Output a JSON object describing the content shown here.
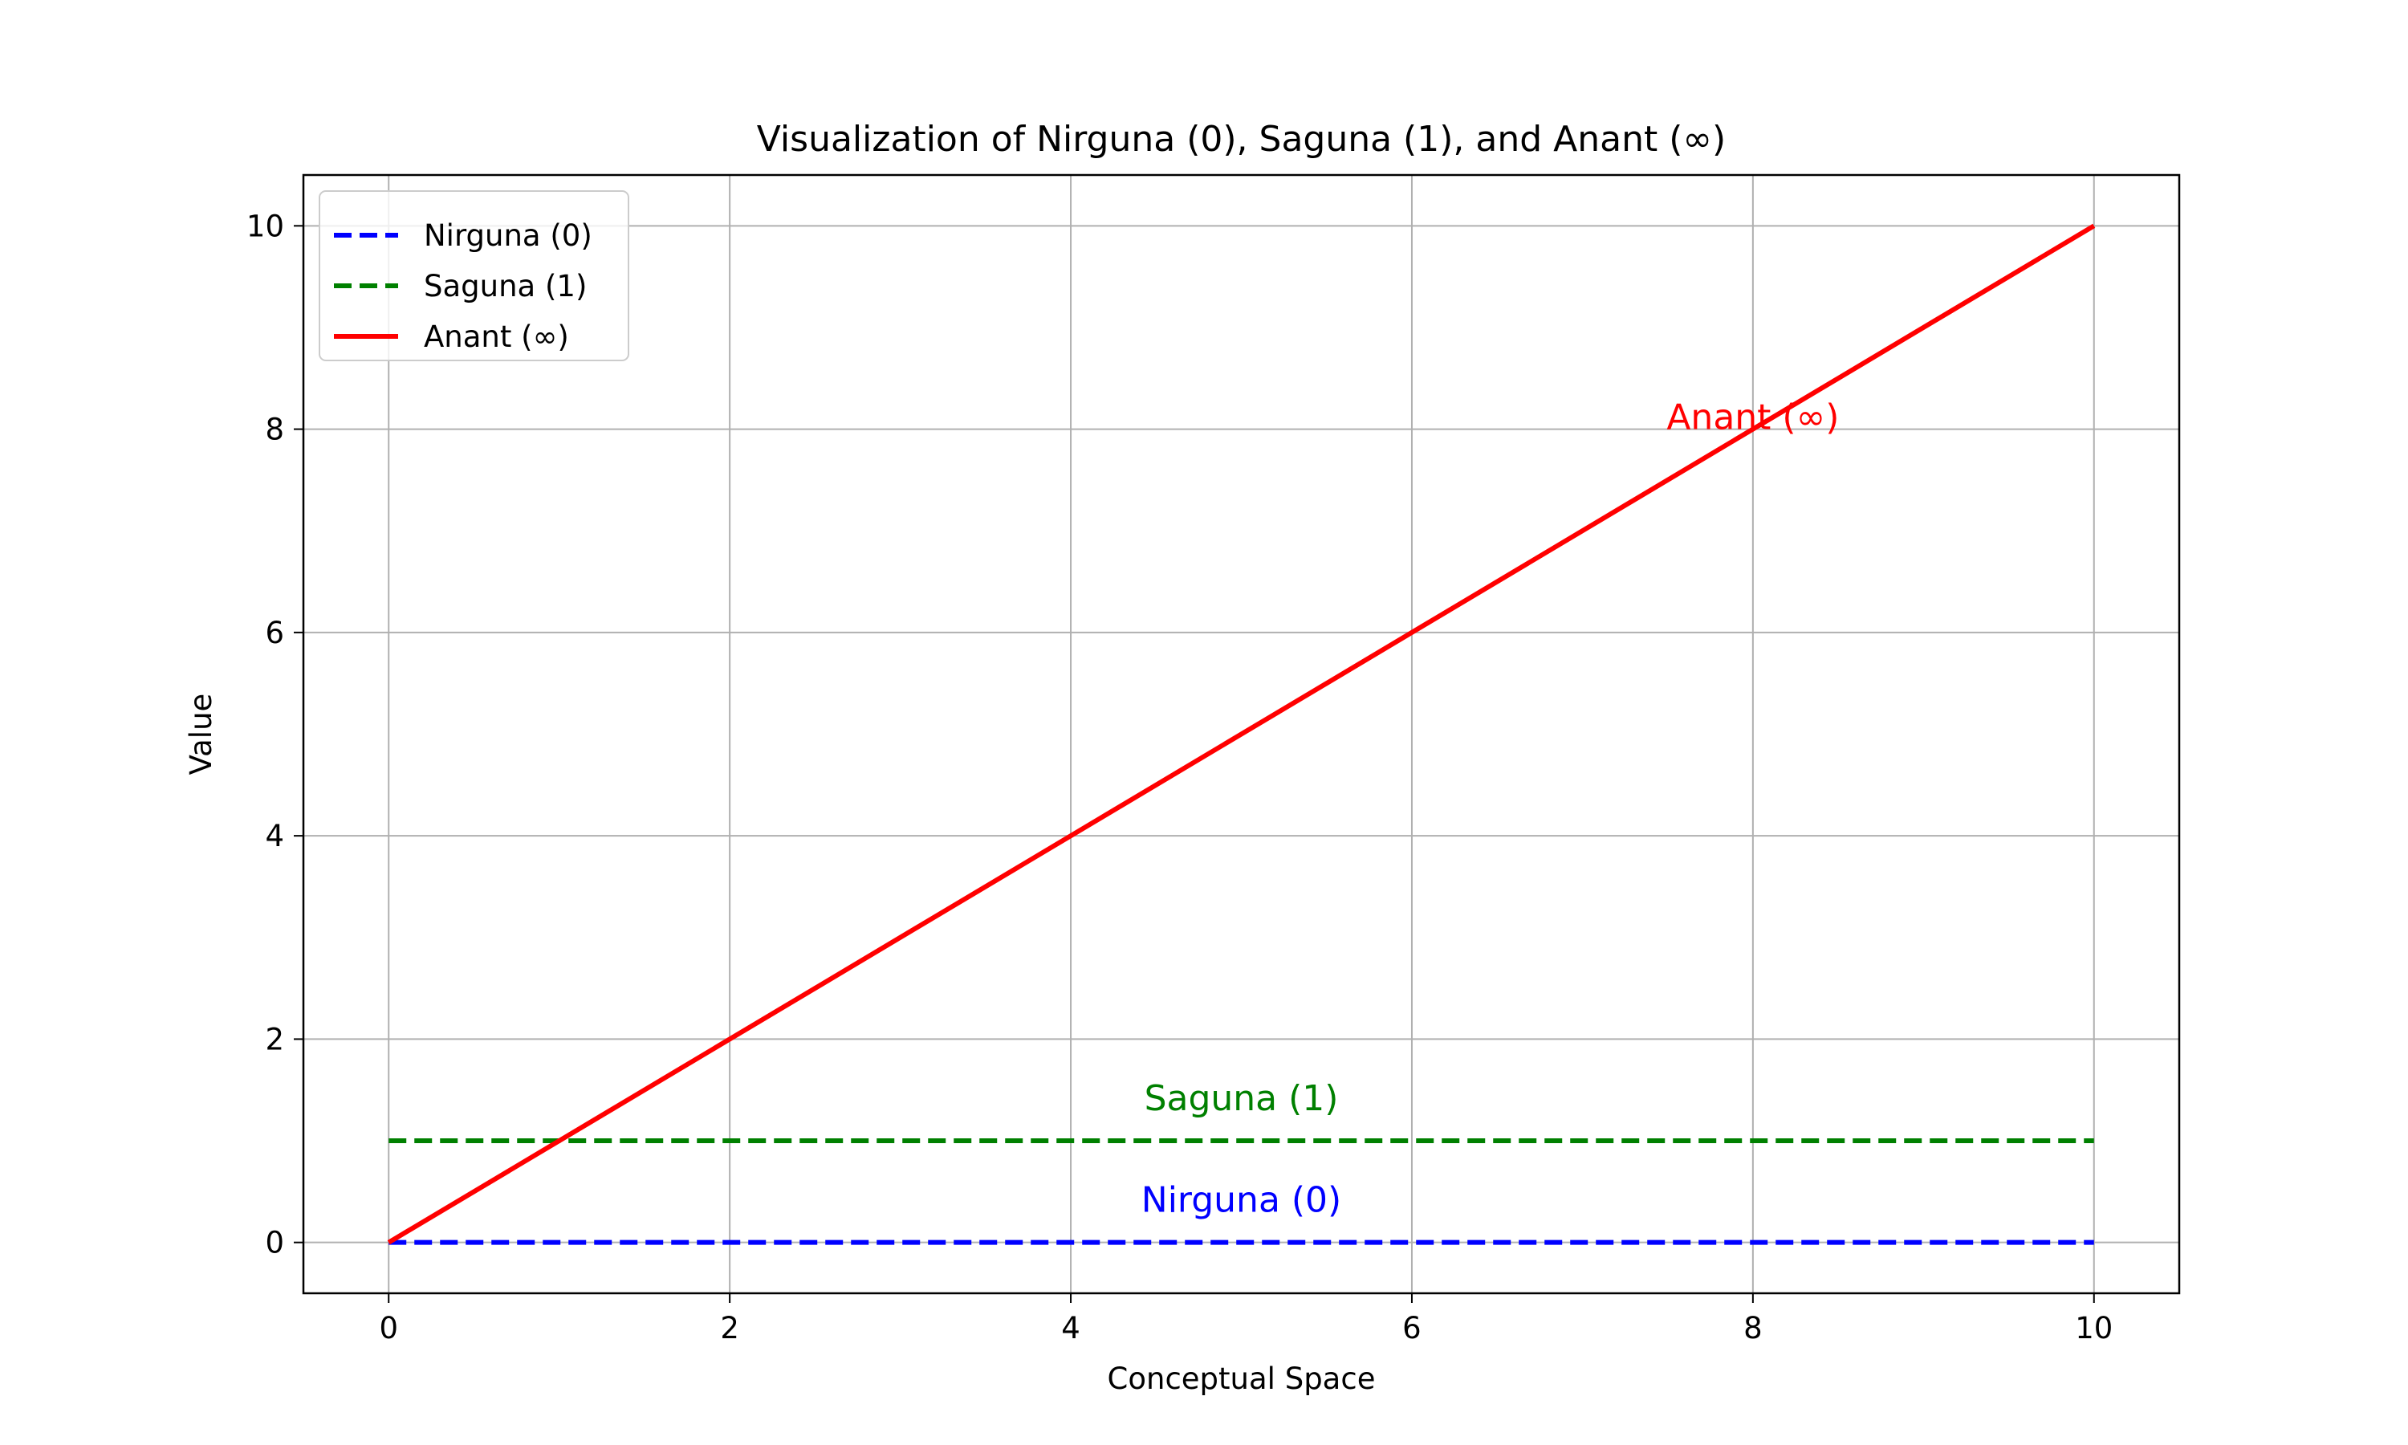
{
  "chart_data": {
    "type": "line",
    "title": "Visualization of Nirguna (0), Saguna (1), and Anant (∞)",
    "xlabel": "Conceptual Space",
    "ylabel": "Value",
    "xlim": [
      -0.5,
      10.5
    ],
    "ylim": [
      -0.5,
      10.5
    ],
    "xticks": [
      0,
      2,
      4,
      6,
      8,
      10
    ],
    "yticks": [
      0,
      2,
      4,
      6,
      8,
      10
    ],
    "xtick_labels": [
      "0",
      "2",
      "4",
      "6",
      "8",
      "10"
    ],
    "ytick_labels": [
      "0",
      "2",
      "4",
      "6",
      "8",
      "10"
    ],
    "grid": true,
    "legend_position": "top-left",
    "series": [
      {
        "name": "Nirguna (0)",
        "color": "#0000ff",
        "style": "dashed",
        "x": [
          0,
          10
        ],
        "y": [
          0,
          0
        ]
      },
      {
        "name": "Saguna (1)",
        "color": "#008000",
        "style": "dashed",
        "x": [
          0,
          10
        ],
        "y": [
          1,
          1
        ]
      },
      {
        "name": "Anant (∞)",
        "color": "#ff0000",
        "style": "solid",
        "x": [
          0,
          10
        ],
        "y": [
          0,
          10
        ]
      }
    ],
    "annotations": [
      {
        "text": "Nirguna (0)",
        "x": 5,
        "y": 0.3,
        "color": "#0000ff"
      },
      {
        "text": "Saguna (1)",
        "x": 5,
        "y": 1.3,
        "color": "#008000"
      },
      {
        "text": "Anant (∞)",
        "x": 8,
        "y": 8,
        "color": "#ff0000"
      }
    ]
  }
}
